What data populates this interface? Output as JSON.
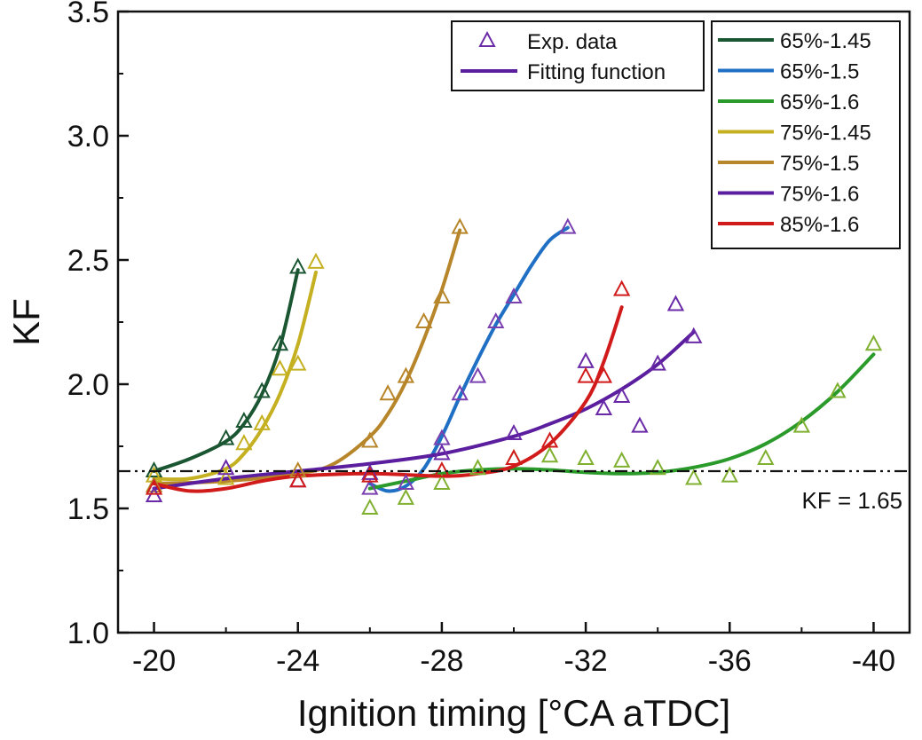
{
  "chart_data": {
    "type": "line",
    "xlabel": "Ignition timing [°CA aTDC]",
    "ylabel": "KF",
    "xlim": [
      -19,
      -41
    ],
    "ylim": [
      1.0,
      3.5
    ],
    "x_ticks": [
      -20,
      -24,
      -28,
      -32,
      -36,
      -40
    ],
    "x_tick_labels": [
      "-20",
      "-24",
      "-28",
      "-32",
      "-36",
      "-40"
    ],
    "y_ticks": [
      1.0,
      1.5,
      2.0,
      2.5,
      3.0,
      3.5
    ],
    "y_tick_labels": [
      "1.0",
      "1.5",
      "2.0",
      "2.5",
      "3.0",
      "3.5"
    ],
    "grid": false,
    "legend_markers": {
      "position": "top-center",
      "entries": [
        {
          "label": "Exp. data",
          "kind": "triangle",
          "color": "#6a2aa8"
        },
        {
          "label": "Fitting function",
          "kind": "line",
          "color": "#5a1e9e"
        }
      ]
    },
    "legend_series_position": "top-right",
    "reference_line": {
      "y": 1.65,
      "label": "KF = 1.65",
      "style": "dash-dot"
    },
    "series": [
      {
        "name": "65%-1.45",
        "color": "#1a5632",
        "marker_color": "#1a5632",
        "points": [
          [
            -20,
            1.65
          ],
          [
            -22,
            1.78
          ],
          [
            -22.5,
            1.85
          ],
          [
            -23,
            1.97
          ],
          [
            -23.5,
            2.16
          ],
          [
            -24,
            2.47
          ]
        ],
        "fit": [
          [
            -20,
            1.65
          ],
          [
            -21,
            1.7
          ],
          [
            -22,
            1.77
          ],
          [
            -22.5,
            1.84
          ],
          [
            -23,
            1.96
          ],
          [
            -23.5,
            2.15
          ],
          [
            -24,
            2.46
          ]
        ]
      },
      {
        "name": "65%-1.5",
        "color": "#1f6fc4",
        "marker_color": "#7a40b0",
        "points": [
          [
            -26,
            1.58
          ],
          [
            -27,
            1.6
          ],
          [
            -28,
            1.78
          ],
          [
            -28.5,
            1.96
          ],
          [
            -29,
            2.03
          ],
          [
            -29.5,
            2.25
          ],
          [
            -30,
            2.35
          ],
          [
            -31.5,
            2.63
          ]
        ],
        "fit": [
          [
            -26,
            1.6
          ],
          [
            -26.5,
            1.57
          ],
          [
            -27,
            1.59
          ],
          [
            -27.5,
            1.66
          ],
          [
            -28,
            1.79
          ],
          [
            -28.5,
            1.95
          ],
          [
            -29,
            2.1
          ],
          [
            -29.5,
            2.24
          ],
          [
            -30,
            2.36
          ],
          [
            -30.5,
            2.48
          ],
          [
            -31,
            2.58
          ],
          [
            -31.5,
            2.63
          ]
        ]
      },
      {
        "name": "65%-1.6",
        "color": "#2a9a2a",
        "marker_color": "#7fb030",
        "points": [
          [
            -26,
            1.5
          ],
          [
            -27,
            1.54
          ],
          [
            -28,
            1.6
          ],
          [
            -29,
            1.66
          ],
          [
            -30,
            1.7
          ],
          [
            -31,
            1.71
          ],
          [
            -32,
            1.7
          ],
          [
            -33,
            1.69
          ],
          [
            -34,
            1.66
          ],
          [
            -35,
            1.62
          ],
          [
            -36,
            1.63
          ],
          [
            -37,
            1.7
          ],
          [
            -38,
            1.83
          ],
          [
            -39,
            1.97
          ],
          [
            -40,
            2.16
          ]
        ],
        "fit": [
          [
            -26,
            1.58
          ],
          [
            -27,
            1.61
          ],
          [
            -28,
            1.64
          ],
          [
            -29,
            1.655
          ],
          [
            -30,
            1.66
          ],
          [
            -31,
            1.655
          ],
          [
            -32,
            1.645
          ],
          [
            -33,
            1.64
          ],
          [
            -34,
            1.645
          ],
          [
            -35,
            1.665
          ],
          [
            -36,
            1.7
          ],
          [
            -37,
            1.76
          ],
          [
            -38,
            1.85
          ],
          [
            -39,
            1.97
          ],
          [
            -40,
            2.12
          ]
        ]
      },
      {
        "name": "75%-1.45",
        "color": "#c4b020",
        "marker_color": "#c4b020",
        "points": [
          [
            -20,
            1.63
          ],
          [
            -22,
            1.62
          ],
          [
            -22.5,
            1.76
          ],
          [
            -23,
            1.84
          ],
          [
            -23.5,
            2.06
          ],
          [
            -24,
            2.08
          ],
          [
            -24.5,
            2.49
          ]
        ],
        "fit": [
          [
            -20,
            1.62
          ],
          [
            -21,
            1.62
          ],
          [
            -22,
            1.66
          ],
          [
            -22.5,
            1.72
          ],
          [
            -23,
            1.82
          ],
          [
            -23.5,
            1.96
          ],
          [
            -24,
            2.16
          ],
          [
            -24.5,
            2.45
          ]
        ]
      },
      {
        "name": "75%-1.5",
        "color": "#b8862a",
        "marker_color": "#b8862a",
        "points": [
          [
            -20,
            1.59
          ],
          [
            -24,
            1.65
          ],
          [
            -26,
            1.77
          ],
          [
            -26.5,
            1.96
          ],
          [
            -27,
            2.03
          ],
          [
            -27.5,
            2.25
          ],
          [
            -28,
            2.35
          ],
          [
            -28.5,
            2.63
          ]
        ],
        "fit": [
          [
            -20,
            1.6
          ],
          [
            -22,
            1.61
          ],
          [
            -24,
            1.64
          ],
          [
            -25,
            1.68
          ],
          [
            -26,
            1.79
          ],
          [
            -26.5,
            1.88
          ],
          [
            -27,
            2.01
          ],
          [
            -27.5,
            2.18
          ],
          [
            -28,
            2.38
          ],
          [
            -28.5,
            2.62
          ]
        ]
      },
      {
        "name": "75%-1.6",
        "color": "#5a1e9e",
        "marker_color": "#6a2aa8",
        "points": [
          [
            -20,
            1.55
          ],
          [
            -22,
            1.66
          ],
          [
            -24,
            1.61
          ],
          [
            -26,
            1.64
          ],
          [
            -28,
            1.72
          ],
          [
            -30,
            1.8
          ],
          [
            -32,
            2.09
          ],
          [
            -32.5,
            1.9
          ],
          [
            -33,
            1.95
          ],
          [
            -33.5,
            1.83
          ],
          [
            -34,
            2.08
          ],
          [
            -34.5,
            2.32
          ],
          [
            -35,
            2.19
          ]
        ],
        "fit": [
          [
            -20,
            1.58
          ],
          [
            -22,
            1.62
          ],
          [
            -24,
            1.65
          ],
          [
            -26,
            1.68
          ],
          [
            -28,
            1.72
          ],
          [
            -30,
            1.79
          ],
          [
            -31,
            1.84
          ],
          [
            -32,
            1.9
          ],
          [
            -33,
            1.98
          ],
          [
            -34,
            2.08
          ],
          [
            -35,
            2.21
          ]
        ]
      },
      {
        "name": "85%-1.6",
        "color": "#d11a1a",
        "marker_color": "#d11a1a",
        "points": [
          [
            -20,
            1.58
          ],
          [
            -24,
            1.61
          ],
          [
            -26,
            1.63
          ],
          [
            -28,
            1.65
          ],
          [
            -30,
            1.7
          ],
          [
            -31,
            1.77
          ],
          [
            -32,
            2.03
          ],
          [
            -32.5,
            2.03
          ],
          [
            -33,
            2.38
          ]
        ],
        "fit": [
          [
            -20,
            1.6
          ],
          [
            -21,
            1.57
          ],
          [
            -22,
            1.58
          ],
          [
            -23,
            1.61
          ],
          [
            -24,
            1.63
          ],
          [
            -26,
            1.64
          ],
          [
            -28,
            1.63
          ],
          [
            -29,
            1.64
          ],
          [
            -30,
            1.67
          ],
          [
            -31,
            1.76
          ],
          [
            -32,
            1.93
          ],
          [
            -32.5,
            2.09
          ],
          [
            -33,
            2.31
          ]
        ]
      }
    ]
  }
}
